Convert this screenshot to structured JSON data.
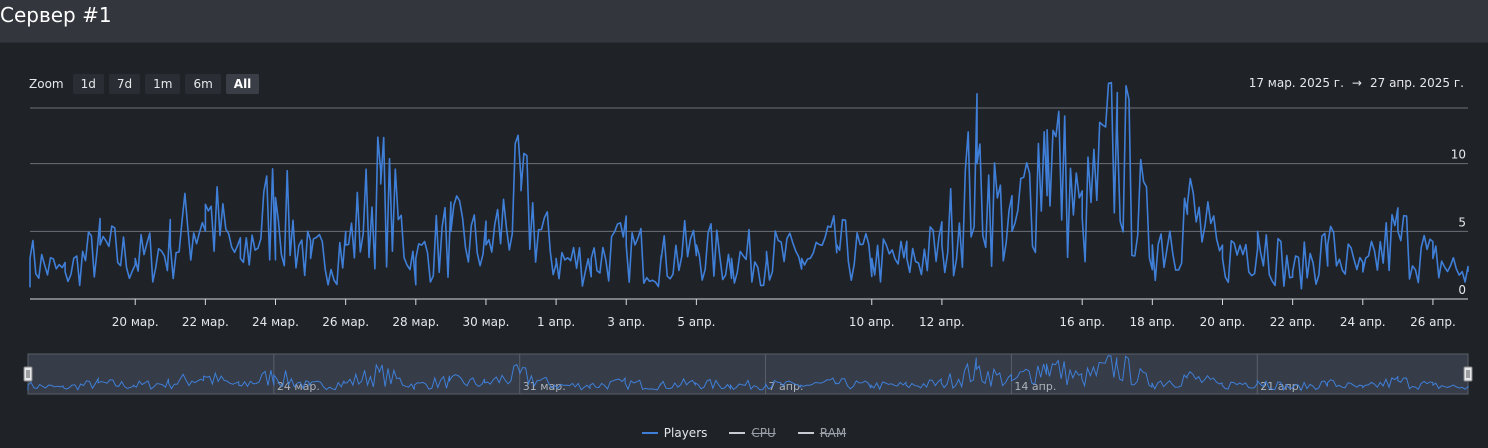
{
  "header": {
    "title": "Сервер #1"
  },
  "zoom": {
    "label": "Zoom",
    "buttons": [
      "1d",
      "7d",
      "1m",
      "6m",
      "All"
    ],
    "active": "All"
  },
  "range": {
    "from": "17 мар. 2025 г.",
    "arrow": "→",
    "to": "27 апр. 2025 г."
  },
  "legend": [
    {
      "name": "Players",
      "color": "#3f7fd8",
      "visible": true
    },
    {
      "name": "CPU",
      "color": "#c8ccd2",
      "visible": false
    },
    {
      "name": "RAM",
      "color": "#c8ccd2",
      "visible": false
    }
  ],
  "chart_data": {
    "type": "line",
    "title": "",
    "xlabel": "",
    "ylabel": "",
    "x_range": [
      "2025-03-17",
      "2025-04-27"
    ],
    "ylim": [
      0,
      15
    ],
    "yticks": [
      0,
      5,
      10
    ],
    "x_tick_labels": [
      "20 мар.",
      "22 мар.",
      "24 мар.",
      "26 мар.",
      "28 мар.",
      "30 мар.",
      "1 апр.",
      "3 апр.",
      "5 апр.",
      "10 апр.",
      "12 апр.",
      "16 апр.",
      "18 апр.",
      "20 апр.",
      "22 апр.",
      "24 апр.",
      "26 апр."
    ],
    "x_tick_dates": [
      "2025-03-20",
      "2025-03-22",
      "2025-03-24",
      "2025-03-26",
      "2025-03-28",
      "2025-03-30",
      "2025-04-01",
      "2025-04-03",
      "2025-04-05",
      "2025-04-10",
      "2025-04-12",
      "2025-04-16",
      "2025-04-18",
      "2025-04-20",
      "2025-04-22",
      "2025-04-24",
      "2025-04-26"
    ],
    "navigator_tick_labels": [
      "24 мар.",
      "31 мар.",
      "7 апр.",
      "14 апр.",
      "21 апр."
    ],
    "navigator_tick_dates": [
      "2025-03-24",
      "2025-03-31",
      "2025-04-07",
      "2025-04-14",
      "2025-04-21"
    ],
    "series": [
      {
        "name": "Players",
        "color": "#3f7fd8",
        "points": [
          [
            "2025-03-17",
            3
          ],
          [
            "2025-03-18",
            2
          ],
          [
            "2025-03-19",
            4
          ],
          [
            "2025-03-20",
            3
          ],
          [
            "2025-03-21",
            4
          ],
          [
            "2025-03-22",
            7
          ],
          [
            "2025-03-23",
            3
          ],
          [
            "2025-03-24",
            7.5
          ],
          [
            "2025-03-25",
            3
          ],
          [
            "2025-03-26",
            4
          ],
          [
            "2025-03-27",
            8.5
          ],
          [
            "2025-03-28",
            3
          ],
          [
            "2025-03-29",
            5
          ],
          [
            "2025-03-30",
            4
          ],
          [
            "2025-03-31",
            8
          ],
          [
            "2025-04-01",
            3
          ],
          [
            "2025-04-02",
            3
          ],
          [
            "2025-04-03",
            4
          ],
          [
            "2025-04-04",
            3
          ],
          [
            "2025-04-05",
            4
          ],
          [
            "2025-04-06",
            3
          ],
          [
            "2025-04-07",
            3.5
          ],
          [
            "2025-04-08",
            3
          ],
          [
            "2025-04-09",
            4
          ],
          [
            "2025-04-10",
            3
          ],
          [
            "2025-04-11",
            3
          ],
          [
            "2025-04-12",
            4
          ],
          [
            "2025-04-13",
            10
          ],
          [
            "2025-04-14",
            5
          ],
          [
            "2025-04-15",
            12.5
          ],
          [
            "2025-04-16",
            6
          ],
          [
            "2025-04-17",
            12.5
          ],
          [
            "2025-04-18",
            4
          ],
          [
            "2025-04-19",
            7
          ],
          [
            "2025-04-20",
            3
          ],
          [
            "2025-04-21",
            5
          ],
          [
            "2025-04-22",
            2
          ],
          [
            "2025-04-23",
            4
          ],
          [
            "2025-04-24",
            2
          ],
          [
            "2025-04-25",
            5
          ],
          [
            "2025-04-26",
            3
          ],
          [
            "2025-04-27",
            2
          ]
        ]
      }
    ]
  }
}
